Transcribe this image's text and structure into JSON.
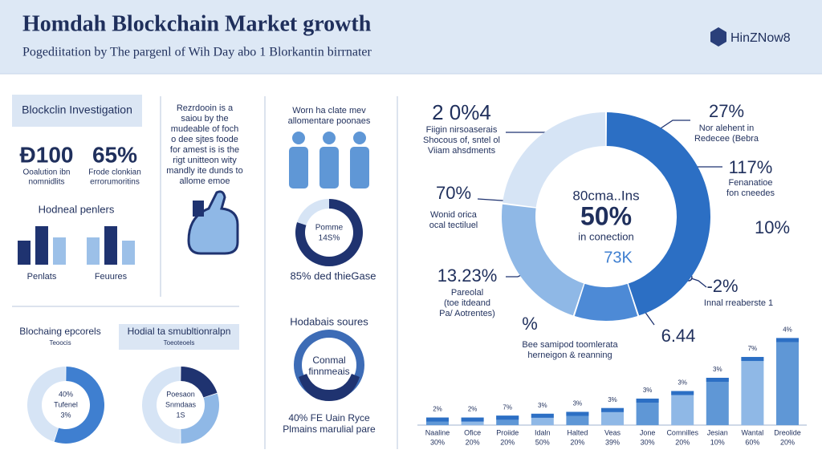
{
  "header": {
    "title": "Homdah Blockchain Market growth",
    "subtitle": "Pogediitation by The pargenl of Wih Day abo 1 Blorkantin birrnater",
    "logo": "HinZNow8"
  },
  "investigation": {
    "tag": "Blockclin Investigation",
    "stats": [
      {
        "value": "Ð100",
        "label": [
          "Ooalution ibn",
          "nomnidlits"
        ]
      },
      {
        "value": "65%",
        "label": [
          "Frode clonkian",
          "errorumoritins"
        ]
      }
    ],
    "groups_title": "Hodneal penlers",
    "groups": [
      "Penlats",
      "Feuures"
    ]
  },
  "note": [
    "Rezrdooin is a",
    "saiou by the",
    "mudeable of foch",
    "o dee sjtes foode",
    "for amest is is the",
    "rigt unitteon wity",
    "mandly ite dunds to",
    "allome emoe"
  ],
  "people": {
    "text": [
      "Worn ha clate mev",
      "allomentare poonaes"
    ],
    "donut": {
      "center": [
        "Pomme",
        "14S%"
      ],
      "segments": [
        80,
        20
      ]
    },
    "caption": "85% ded thieGase"
  },
  "epcorels": {
    "tabs": [
      {
        "title": "Blochaing epcorels",
        "sub": "Teoocis"
      },
      {
        "title": "Hodial ta smubltionralpn",
        "sub": "Toeoteoels"
      }
    ],
    "donuts": [
      {
        "center": [
          "40%",
          "Tufenel",
          "3%"
        ],
        "segments": [
          55,
          45
        ]
      },
      {
        "center": [
          "Poesaon",
          "Snmdaas",
          "1S"
        ],
        "segments": [
          20,
          30,
          50
        ]
      }
    ]
  },
  "sources": {
    "title": "Hodabais soures",
    "icon_text": [
      "Conmal",
      "finnmeais"
    ],
    "caption": [
      "40% FE Uain Ryce",
      "Plmains marulial pare"
    ]
  },
  "ring": {
    "center": [
      "80cma..Ins",
      "50%",
      "in conection"
    ],
    "inner_note": "73K",
    "segments": [
      45,
      10,
      22,
      23
    ],
    "callouts": [
      {
        "value": "2 0%4",
        "text": [
          "Fiigin nirsoaserais",
          "Shocous of, sntel ol",
          "Viiam ahsdments"
        ]
      },
      {
        "value": "27%",
        "text": [
          "Nor alehent in",
          "Redecee (Bebra"
        ]
      },
      {
        "value": "117%",
        "text": [
          "Fenanatioe",
          "fon cneedes"
        ]
      },
      {
        "value": "10%",
        "text": []
      },
      {
        "value": "70%",
        "text": [
          "Wonid orica",
          "ocal tectiluel"
        ]
      },
      {
        "value": "13.23%",
        "text": [
          "Pareolal",
          "(toe itdeand",
          "Pa/ Aotrentes)"
        ]
      },
      {
        "value": "-2%",
        "text": [
          "Innal rreaberste 1"
        ]
      },
      {
        "value": "6.44",
        "text": []
      },
      {
        "value": "%",
        "text": [
          "Bee samipod toomlerata",
          "herneigon & reanning"
        ]
      }
    ]
  },
  "bars": {
    "categories": [
      "Naaline",
      "Ofice",
      "Proiide",
      "Idaln",
      "Halted",
      "Veas",
      "Jone",
      "Comnilles",
      "Jesian",
      "Wantal",
      "Dreolide"
    ],
    "sublabels": [
      "30%",
      "20%",
      "20%",
      "50%",
      "20%",
      "39%",
      "30%",
      "20%",
      "10%",
      "60%",
      "20%"
    ],
    "top_labels": [
      "2%",
      "2%",
      "7%",
      "3%",
      "3%",
      "3%",
      "3%",
      "3%",
      "3%",
      "7%",
      "4%"
    ],
    "values": [
      8,
      8,
      10,
      12,
      14,
      18,
      28,
      36,
      50,
      72,
      92
    ]
  }
}
